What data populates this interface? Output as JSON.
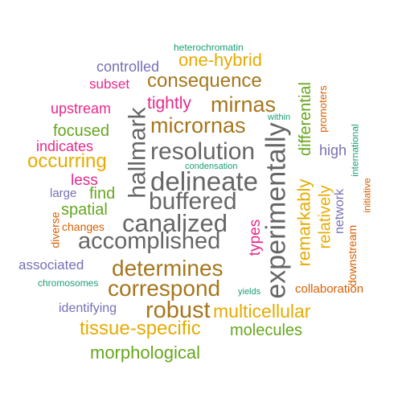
{
  "palette": {
    "teal": "#1b9e77",
    "orange": "#d95f02",
    "purple": "#7570b3",
    "magenta": "#e7298a",
    "green": "#66a61e",
    "gold": "#e6ab02",
    "brown": "#a6761d",
    "gray": "#666666"
  },
  "words": [
    {
      "text": "heterochromatin",
      "color": "teal"
    },
    {
      "text": "controlled",
      "color": "purple"
    },
    {
      "text": "one-hybrid",
      "color": "gold"
    },
    {
      "text": "subset",
      "color": "magenta"
    },
    {
      "text": "consequence",
      "color": "brown"
    },
    {
      "text": "promoters",
      "color": "orange"
    },
    {
      "text": "differential",
      "color": "green"
    },
    {
      "text": "tightly",
      "color": "magenta"
    },
    {
      "text": "mirnas",
      "color": "brown"
    },
    {
      "text": "upstream",
      "color": "magenta"
    },
    {
      "text": "hallmark",
      "color": "gray"
    },
    {
      "text": "within",
      "color": "teal"
    },
    {
      "text": "micrornas",
      "color": "brown"
    },
    {
      "text": "focused",
      "color": "green"
    },
    {
      "text": "international",
      "color": "teal"
    },
    {
      "text": "indicates",
      "color": "magenta"
    },
    {
      "text": "resolution",
      "color": "gray"
    },
    {
      "text": "high",
      "color": "purple"
    },
    {
      "text": "experimentally",
      "color": "gray"
    },
    {
      "text": "occurring",
      "color": "gold"
    },
    {
      "text": "condensation",
      "color": "teal"
    },
    {
      "text": "delineate",
      "color": "gray"
    },
    {
      "text": "less",
      "color": "magenta"
    },
    {
      "text": "remarkably",
      "color": "gold"
    },
    {
      "text": "large",
      "color": "purple"
    },
    {
      "text": "find",
      "color": "green"
    },
    {
      "text": "buffered",
      "color": "gray"
    },
    {
      "text": "relatively",
      "color": "gold"
    },
    {
      "text": "network",
      "color": "purple"
    },
    {
      "text": "initiative",
      "color": "orange"
    },
    {
      "text": "diverse",
      "color": "orange"
    },
    {
      "text": "spatial",
      "color": "green"
    },
    {
      "text": "canalized",
      "color": "gray"
    },
    {
      "text": "changes",
      "color": "orange"
    },
    {
      "text": "types",
      "color": "magenta"
    },
    {
      "text": "downstream",
      "color": "orange"
    },
    {
      "text": "accomplished",
      "color": "gray"
    },
    {
      "text": "associated",
      "color": "purple"
    },
    {
      "text": "determines",
      "color": "brown"
    },
    {
      "text": "chromosomes",
      "color": "teal"
    },
    {
      "text": "correspond",
      "color": "brown"
    },
    {
      "text": "collaboration",
      "color": "orange"
    },
    {
      "text": "yields",
      "color": "teal"
    },
    {
      "text": "identifying",
      "color": "purple"
    },
    {
      "text": "robust",
      "color": "brown"
    },
    {
      "text": "multicellular",
      "color": "gold"
    },
    {
      "text": "tissue-specific",
      "color": "gold"
    },
    {
      "text": "molecules",
      "color": "green"
    },
    {
      "text": "morphological",
      "color": "green"
    }
  ]
}
